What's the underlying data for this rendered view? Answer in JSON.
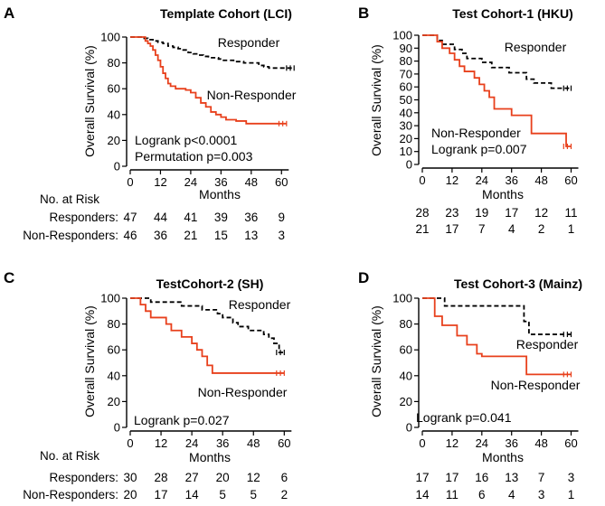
{
  "colors": {
    "responder": "#000000",
    "non_responder": "#e8401c",
    "axis": "#000000"
  },
  "chart_data": [
    {
      "type": "line",
      "letter": "A",
      "title": "Template Cohort (LCI)",
      "xlabel": "Months",
      "ylabel": "Overall Survival (%)",
      "xlim": [
        0,
        66
      ],
      "ylim": [
        0,
        100
      ],
      "xticks": [
        "0",
        "12",
        "24",
        "36",
        "48",
        "60"
      ],
      "yticks": [
        "0",
        "20",
        "40",
        "60",
        "80",
        "100"
      ],
      "series": [
        {
          "name": "Responder",
          "style": "dashed",
          "x": [
            0,
            3,
            5,
            7,
            9,
            11,
            13,
            15,
            17,
            19,
            21,
            23,
            25,
            27,
            29,
            31,
            33,
            35,
            37,
            39,
            41,
            43,
            45,
            47,
            49,
            51,
            53,
            55,
            57,
            59,
            61,
            63,
            65
          ],
          "y": [
            100,
            100,
            99,
            98,
            97,
            96,
            95,
            93,
            92,
            91,
            90,
            88,
            87,
            86,
            85,
            84,
            84,
            83,
            82,
            82,
            81,
            81,
            80,
            80,
            80,
            78,
            77,
            76,
            76,
            76,
            76,
            76,
            76
          ]
        },
        {
          "name": "Non-Responder",
          "style": "solid",
          "x": [
            0,
            4,
            6,
            7,
            8,
            9,
            10,
            11,
            12,
            13,
            14,
            15,
            16,
            18,
            20,
            22,
            24,
            26,
            28,
            30,
            32,
            34,
            36,
            38,
            40,
            42,
            44,
            46,
            48,
            50,
            52,
            54,
            56,
            58,
            60,
            62
          ],
          "y": [
            100,
            100,
            97,
            95,
            93,
            90,
            86,
            82,
            77,
            72,
            68,
            64,
            62,
            60,
            60,
            59,
            57,
            53,
            49,
            46,
            42,
            40,
            38,
            36,
            36,
            35,
            35,
            33,
            33,
            33,
            33,
            33,
            33,
            33,
            33,
            33
          ]
        }
      ],
      "annotations": [
        "Logrank p<0.0001",
        "Permutation p=0.003"
      ],
      "risk_table": {
        "header": "No. at Risk",
        "rows": [
          {
            "label": "Responders:",
            "values": [
              "47",
              "44",
              "41",
              "39",
              "36",
              "9"
            ]
          },
          {
            "label": "Non-Responders:",
            "values": [
              "46",
              "36",
              "21",
              "15",
              "13",
              "3"
            ]
          }
        ]
      }
    },
    {
      "type": "line",
      "letter": "B",
      "title": "Test Cohort-1 (HKU)",
      "xlabel": "Months",
      "ylabel": "Overall Survival (%)",
      "xlim": [
        0,
        62
      ],
      "ylim": [
        0,
        100
      ],
      "xticks": [
        "0",
        "12",
        "24",
        "36",
        "48",
        "60"
      ],
      "yticks": [
        "0",
        "10",
        "20",
        "30",
        "40",
        "50",
        "60",
        "70",
        "80",
        "90",
        "100"
      ],
      "series": [
        {
          "name": "Responder",
          "style": "dashed",
          "x": [
            0,
            4,
            6,
            8,
            11,
            13,
            16,
            18,
            21,
            24,
            26,
            28,
            32,
            35,
            38,
            42,
            45,
            48,
            52,
            56,
            60
          ],
          "y": [
            100,
            100,
            96,
            93,
            93,
            89,
            86,
            82,
            82,
            79,
            79,
            75,
            75,
            71,
            71,
            66,
            63,
            63,
            59,
            59,
            59
          ]
        },
        {
          "name": "Non-Responder",
          "style": "solid",
          "x": [
            0,
            4,
            6,
            8,
            10,
            11,
            13,
            15,
            17,
            19,
            21,
            23,
            25,
            27,
            29,
            33,
            36,
            40,
            44,
            48,
            52,
            56,
            58,
            60
          ],
          "y": [
            100,
            100,
            95,
            90,
            90,
            86,
            81,
            76,
            72,
            72,
            67,
            62,
            57,
            52,
            43,
            43,
            38,
            38,
            24,
            24,
            24,
            24,
            14,
            14
          ]
        }
      ],
      "annotations": [
        "Non-Responder",
        "Logrank p=0.007"
      ],
      "risk_table": {
        "header": "",
        "rows": [
          {
            "label": "",
            "values": [
              "28",
              "23",
              "19",
              "17",
              "12",
              "11"
            ]
          },
          {
            "label": "",
            "values": [
              "21",
              "17",
              "7",
              "4",
              "2",
              "1"
            ]
          }
        ]
      }
    },
    {
      "type": "line",
      "letter": "C",
      "title": "TestCohort-2 (SH)",
      "xlabel": "Months",
      "ylabel": "Overall Survival (%)",
      "xlim": [
        0,
        62
      ],
      "ylim": [
        0,
        100
      ],
      "xticks": [
        "0",
        "12",
        "24",
        "36",
        "48",
        "60"
      ],
      "yticks": [
        "0",
        "20",
        "40",
        "60",
        "80",
        "100"
      ],
      "series": [
        {
          "name": "Responder",
          "style": "dashed",
          "x": [
            0,
            4,
            8,
            12,
            16,
            20,
            24,
            26,
            28,
            30,
            32,
            34,
            36,
            38,
            40,
            42,
            44,
            46,
            48,
            50,
            52,
            54,
            56,
            58,
            60
          ],
          "y": [
            100,
            100,
            97,
            97,
            97,
            94,
            94,
            94,
            91,
            91,
            91,
            88,
            85,
            85,
            81,
            78,
            78,
            75,
            75,
            75,
            72,
            69,
            65,
            58,
            58
          ]
        },
        {
          "name": "Non-Responder",
          "style": "solid",
          "x": [
            0,
            2,
            4,
            6,
            8,
            12,
            14,
            16,
            18,
            20,
            22,
            24,
            26,
            28,
            30,
            32,
            35,
            40,
            48,
            56,
            60
          ],
          "y": [
            100,
            100,
            95,
            90,
            85,
            85,
            80,
            75,
            75,
            70,
            70,
            65,
            60,
            55,
            48,
            42,
            42,
            42,
            42,
            42,
            42
          ]
        }
      ],
      "annotations": [
        "Logrank p=0.027"
      ],
      "risk_table": {
        "header": "No. at Risk",
        "rows": [
          {
            "label": "Responders:",
            "values": [
              "30",
              "28",
              "27",
              "20",
              "12",
              "6"
            ]
          },
          {
            "label": "Non-Responders:",
            "values": [
              "20",
              "17",
              "14",
              "5",
              "5",
              "2"
            ]
          }
        ]
      }
    },
    {
      "type": "line",
      "letter": "D",
      "title": "Test Cohort-3 (Mainz)",
      "xlabel": "Months",
      "ylabel": "Overall Survival (%)",
      "xlim": [
        0,
        62
      ],
      "ylim": [
        0,
        100
      ],
      "xticks": [
        "0",
        "12",
        "24",
        "36",
        "48",
        "60"
      ],
      "yticks": [
        "0",
        "20",
        "40",
        "60",
        "80",
        "100"
      ],
      "series": [
        {
          "name": "Responder",
          "style": "dashed",
          "x": [
            0,
            4,
            8,
            9,
            12,
            16,
            20,
            24,
            28,
            32,
            36,
            40,
            41,
            43,
            48,
            52,
            56,
            60
          ],
          "y": [
            100,
            100,
            100,
            94,
            94,
            94,
            94,
            94,
            94,
            94,
            94,
            94,
            82,
            72,
            72,
            72,
            72,
            72
          ]
        },
        {
          "name": "Non-Responder",
          "style": "solid",
          "x": [
            0,
            4,
            5,
            6,
            8,
            10,
            12,
            14,
            16,
            18,
            20,
            22,
            24,
            28,
            32,
            36,
            40,
            42,
            48,
            52,
            56,
            60
          ],
          "y": [
            100,
            100,
            86,
            86,
            79,
            79,
            79,
            71,
            71,
            64,
            64,
            57,
            55,
            55,
            55,
            55,
            55,
            41,
            41,
            41,
            41,
            41
          ]
        }
      ],
      "annotations": [
        "Logrank p=0.041"
      ],
      "risk_table": {
        "header": "",
        "rows": [
          {
            "label": "",
            "values": [
              "17",
              "17",
              "16",
              "13",
              "7",
              "3"
            ]
          },
          {
            "label": "",
            "values": [
              "14",
              "11",
              "6",
              "4",
              "3",
              "1"
            ]
          }
        ]
      }
    }
  ]
}
